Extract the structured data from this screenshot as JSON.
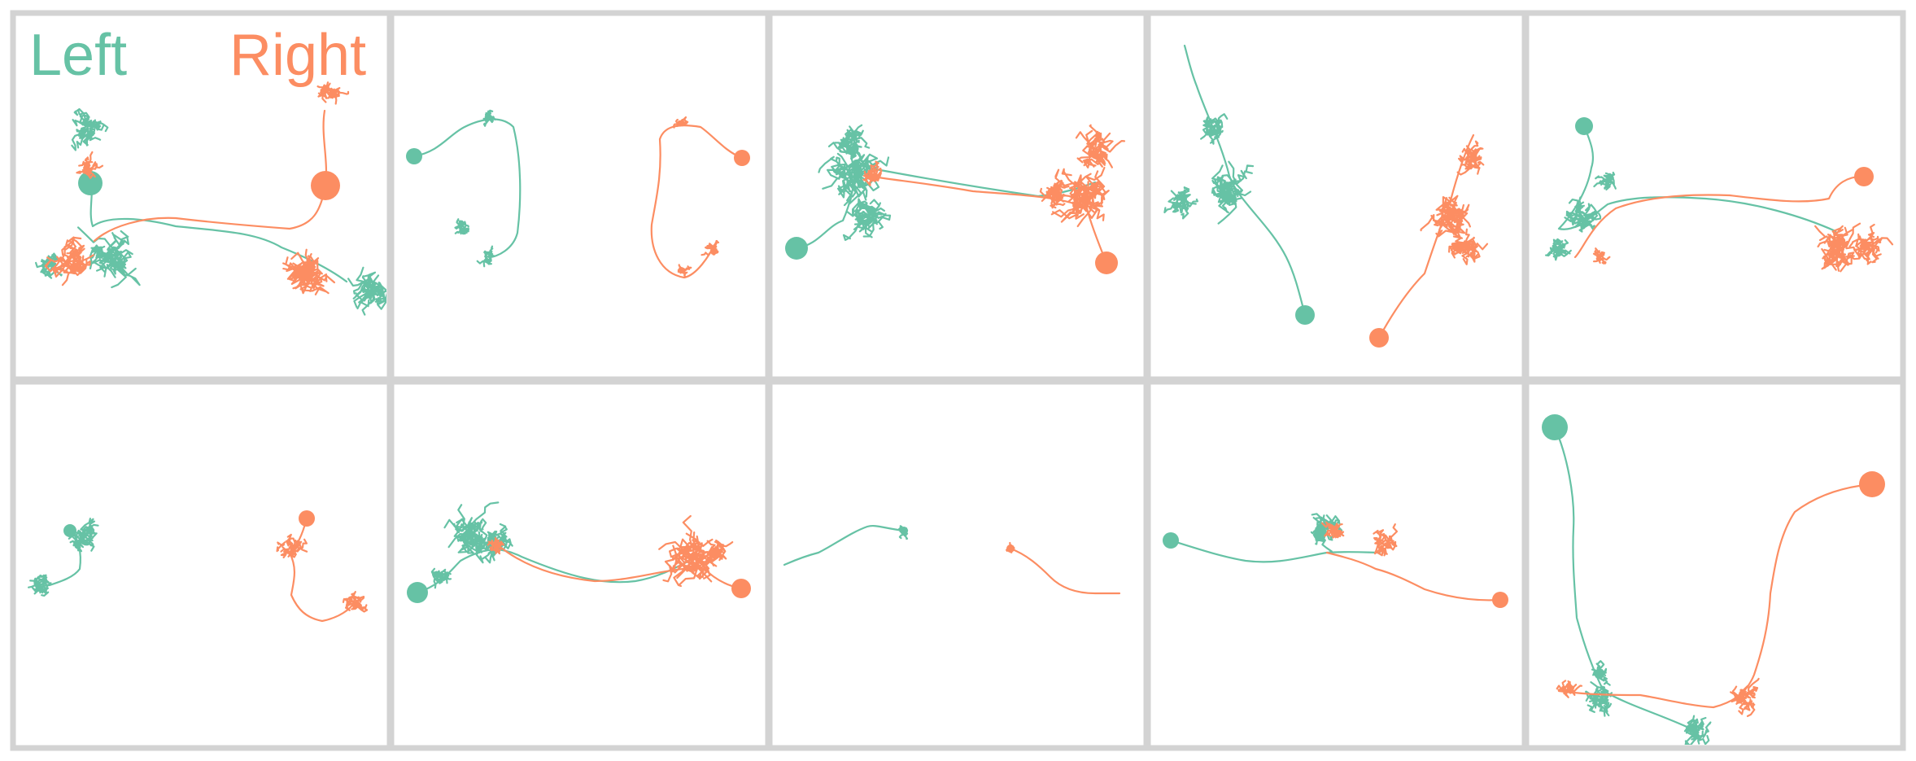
{
  "legend": {
    "left_label": "Left",
    "right_label": "Right"
  },
  "colors": {
    "left": "#66c2a5",
    "right": "#fc8d62",
    "frame": "#d3d3d3",
    "background": "#ffffff"
  },
  "grid": {
    "rows": 2,
    "columns": 5
  },
  "panels": [
    {
      "id": "pair-1",
      "row": 1,
      "col": 1
    },
    {
      "id": "pair-2",
      "row": 1,
      "col": 2
    },
    {
      "id": "pair-3",
      "row": 1,
      "col": 3
    },
    {
      "id": "pair-4",
      "row": 1,
      "col": 4
    },
    {
      "id": "pair-5",
      "row": 1,
      "col": 5
    },
    {
      "id": "pair-6",
      "row": 2,
      "col": 1
    },
    {
      "id": "pair-7",
      "row": 2,
      "col": 2
    },
    {
      "id": "pair-8",
      "row": 2,
      "col": 3
    },
    {
      "id": "pair-9",
      "row": 2,
      "col": 4
    },
    {
      "id": "pair-10",
      "row": 2,
      "col": 5
    }
  ]
}
